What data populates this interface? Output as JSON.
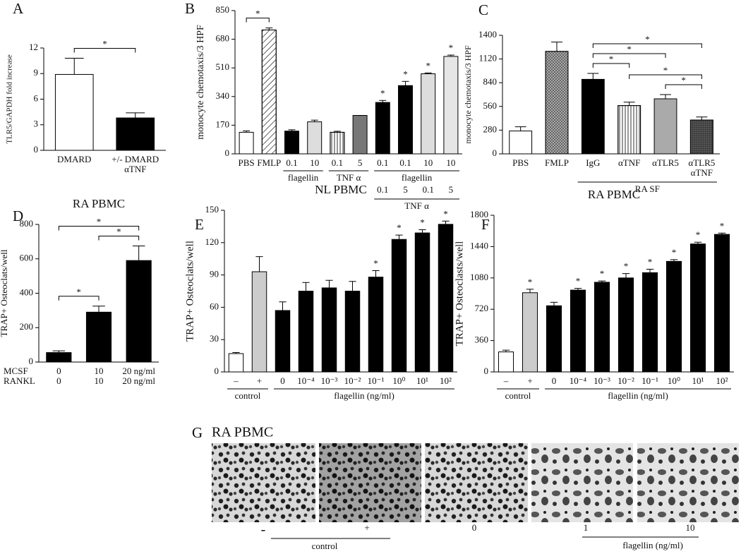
{
  "chart_data": [
    {
      "panel": "A",
      "type": "bar",
      "ylabel": "TLR5/GAPDH fold increase",
      "categories": [
        "DMARD",
        "+/- DMARD"
      ],
      "categories2": [
        null,
        "αTNF"
      ],
      "values": [
        8.9,
        3.8
      ],
      "errors": [
        1.9,
        0.6
      ],
      "colors": [
        "#ffffff",
        "#000000"
      ],
      "ylim": [
        0,
        12
      ],
      "yticks": [
        0,
        3,
        6,
        9,
        12
      ],
      "significance": [
        {
          "label": "*",
          "from": 0,
          "to": 1
        }
      ]
    },
    {
      "panel": "B",
      "type": "bar",
      "ylabel": "monocyte chemotaxis/3 HPF",
      "categories": [
        "PBS",
        "FMLP",
        "0.1",
        "10",
        "0.1",
        "5",
        "0.1",
        "0.1",
        "10",
        "10"
      ],
      "categories2": [
        null,
        null,
        null,
        null,
        null,
        null,
        "0.1",
        "5",
        "0.1",
        "5"
      ],
      "groups": [
        {
          "label": "flagellin",
          "from": 2,
          "to": 3
        },
        {
          "label": "TNF α",
          "from": 4,
          "to": 5
        },
        {
          "label": "flagellin",
          "from": 6,
          "to": 9
        }
      ],
      "groups2": [
        {
          "label": "TNF α",
          "from": 6,
          "to": 9
        }
      ],
      "values": [
        128,
        735,
        135,
        190,
        128,
        228,
        305,
        405,
        475,
        578
      ],
      "errors": [
        8,
        12,
        8,
        10,
        6,
        0,
        12,
        25,
        5,
        8
      ],
      "colors": [
        "#ffffff",
        "#ffffff",
        "#000000",
        "#dddddd",
        "#ffffff",
        "#777777",
        "#000000",
        "#000000",
        "#dddddd",
        "#e6e6e6"
      ],
      "patterns": [
        null,
        "diagonal",
        null,
        null,
        "vertical",
        null,
        null,
        null,
        null,
        null
      ],
      "bar_labels": [
        null,
        null,
        null,
        null,
        null,
        null,
        "*",
        "*",
        "*",
        "*"
      ],
      "ylim": [
        0,
        850
      ],
      "yticks": [
        0,
        170,
        340,
        510,
        680,
        850
      ],
      "significance": [
        {
          "label": "*",
          "from": 0,
          "to": 1
        }
      ]
    },
    {
      "panel": "C",
      "type": "bar",
      "ylabel": "monocyte chemotaxis/3 HPF",
      "categories": [
        "PBS",
        "FMLP",
        "IgG",
        "αTNF",
        "αTLR5",
        "αTLR5"
      ],
      "categories2": [
        null,
        null,
        null,
        null,
        null,
        "αTNF"
      ],
      "groups2": [
        {
          "label": "RA SF",
          "from": 2,
          "to": 5
        }
      ],
      "values": [
        270,
        1210,
        880,
        570,
        650,
        400
      ],
      "errors": [
        50,
        110,
        70,
        40,
        50,
        35
      ],
      "colors": [
        "#ffffff",
        "#bbbbbb",
        "#000000",
        "#ffffff",
        "#aaaaaa",
        "#555555"
      ],
      "patterns": [
        null,
        "crosshatch",
        null,
        "vertical",
        null,
        "grid"
      ],
      "ylim": [
        0,
        1400
      ],
      "yticks": [
        0,
        280,
        560,
        840,
        1120,
        1400
      ],
      "significance": [
        {
          "label": "*",
          "from": 2,
          "to": 3
        },
        {
          "label": "*",
          "from": 2,
          "to": 4
        },
        {
          "label": "*",
          "from": 2,
          "to": 5
        },
        {
          "label": "*",
          "from": 4,
          "to": 5
        },
        {
          "label": "*",
          "from": 3,
          "to": 5
        }
      ]
    },
    {
      "panel": "D",
      "type": "bar",
      "title": "RA PBMC",
      "ylabel": "TRAP+ Osteoclats/well",
      "row_labels": [
        "MCSF",
        "RANKL"
      ],
      "categories": [
        "0",
        "10",
        "20 ng/ml"
      ],
      "categories2": [
        "0",
        "10",
        "20 ng/ml"
      ],
      "values": [
        55,
        290,
        590
      ],
      "errors": [
        10,
        35,
        85
      ],
      "colors": [
        "#000000",
        "#000000",
        "#000000"
      ],
      "ylim": [
        0,
        800
      ],
      "yticks": [
        0,
        200,
        400,
        600,
        800
      ],
      "significance": [
        {
          "label": "*",
          "from": 0,
          "to": 1
        },
        {
          "label": "*",
          "from": 1,
          "to": 2
        },
        {
          "label": "*",
          "from": 0,
          "to": 2
        }
      ]
    },
    {
      "panel": "E",
      "type": "bar",
      "title": "NL PBMC",
      "ylabel": "TRAP+ Osteoclats/well",
      "categories": [
        "–",
        "+",
        "0",
        "10⁻⁴",
        "10⁻³",
        "10⁻²",
        "10⁻¹",
        "10⁰",
        "10¹",
        "10²"
      ],
      "groups": [
        {
          "label": "control",
          "from": 0,
          "to": 1
        },
        {
          "label": "flagellin (ng/ml)",
          "from": 2,
          "to": 9
        }
      ],
      "values": [
        17,
        93,
        57,
        75,
        78,
        75,
        88,
        123,
        129,
        137
      ],
      "errors": [
        1,
        14,
        8,
        8,
        7,
        9,
        6,
        4,
        3,
        3
      ],
      "colors": [
        "#ffffff",
        "#cccccc",
        "#000000",
        "#000000",
        "#000000",
        "#000000",
        "#000000",
        "#000000",
        "#000000",
        "#000000"
      ],
      "bar_labels": [
        null,
        null,
        null,
        null,
        null,
        null,
        "*",
        "*",
        "*",
        "*"
      ],
      "ylim": [
        0,
        150
      ],
      "yticks": [
        0,
        30,
        60,
        90,
        120,
        150
      ]
    },
    {
      "panel": "F",
      "type": "bar",
      "title": "RA PBMC",
      "ylabel": "TRAP+ Osteoclasts/well",
      "categories": [
        "–",
        "+",
        "0",
        "10⁻⁴",
        "10⁻³",
        "10⁻²",
        "10⁻¹",
        "10⁰",
        "10¹",
        "10²"
      ],
      "groups": [
        {
          "label": "control",
          "from": 0,
          "to": 1
        },
        {
          "label": "flagellin (ng/ml)",
          "from": 2,
          "to": 9
        }
      ],
      "values": [
        230,
        910,
        760,
        940,
        1030,
        1080,
        1140,
        1270,
        1470,
        1580
      ],
      "errors": [
        20,
        40,
        40,
        20,
        15,
        50,
        40,
        20,
        20,
        15
      ],
      "colors": [
        "#ffffff",
        "#cccccc",
        "#000000",
        "#000000",
        "#000000",
        "#000000",
        "#000000",
        "#000000",
        "#000000",
        "#000000"
      ],
      "bar_labels": [
        null,
        "*",
        null,
        "*",
        "*",
        "*",
        "*",
        "*",
        "*",
        "*"
      ],
      "ylim": [
        0,
        1800
      ],
      "yticks": [
        0,
        360,
        720,
        1080,
        1440,
        1800
      ]
    }
  ],
  "micrograph": {
    "panel": "G",
    "title": "RA PBMC",
    "labels": [
      "-",
      "+",
      "0",
      "1",
      "10"
    ],
    "groups": [
      "control",
      "flagellin  (ng/ml)"
    ]
  }
}
